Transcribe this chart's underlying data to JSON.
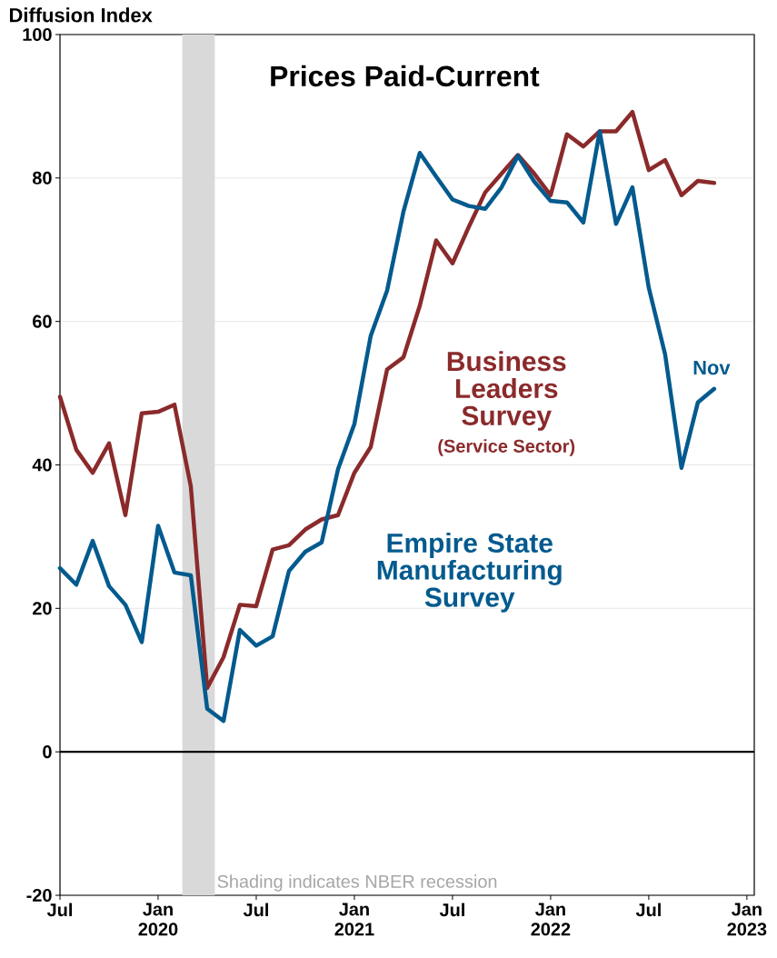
{
  "chart_data": {
    "type": "line",
    "title": "Prices Paid-Current",
    "ylabel": "Diffusion Index",
    "x": [
      "2019-07",
      "2019-08",
      "2019-09",
      "2019-10",
      "2019-11",
      "2019-12",
      "2020-01",
      "2020-02",
      "2020-03",
      "2020-04",
      "2020-05",
      "2020-06",
      "2020-07",
      "2020-08",
      "2020-09",
      "2020-10",
      "2020-11",
      "2020-12",
      "2021-01",
      "2021-02",
      "2021-03",
      "2021-04",
      "2021-05",
      "2021-06",
      "2021-07",
      "2021-08",
      "2021-09",
      "2021-10",
      "2021-11",
      "2021-12",
      "2022-01",
      "2022-02",
      "2022-03",
      "2022-04",
      "2022-05",
      "2022-06",
      "2022-07",
      "2022-08",
      "2022-09",
      "2022-10",
      "2022-11"
    ],
    "series": [
      {
        "name": "Business Leaders Survey",
        "color": "#8b2a2b",
        "values": [
          49.5,
          42.1,
          38.9,
          43.0,
          33.0,
          47.2,
          47.4,
          48.4,
          37.0,
          8.9,
          13.2,
          20.5,
          20.3,
          28.2,
          28.8,
          31.0,
          32.4,
          33.0,
          38.9,
          42.5,
          53.3,
          55.0,
          62.2,
          71.3,
          68.1,
          73.2,
          78.0,
          80.6,
          83.2,
          80.6,
          77.6,
          86.1,
          84.4,
          86.5,
          86.5,
          89.2,
          81.1,
          82.5,
          77.6,
          79.6,
          79.3
        ]
      },
      {
        "name": "Empire State Manufacturing Survey",
        "color": "#035a8e",
        "values": [
          25.6,
          23.3,
          29.4,
          23.1,
          20.5,
          15.3,
          31.5,
          25.0,
          24.6,
          6.0,
          4.3,
          17.0,
          14.8,
          16.1,
          25.2,
          27.9,
          29.2,
          39.4,
          45.7,
          58.0,
          64.3,
          75.3,
          83.5,
          80.2,
          77.0,
          76.1,
          75.7,
          78.7,
          83.1,
          79.5,
          76.8,
          76.6,
          73.8,
          86.5,
          73.6,
          78.7,
          64.7,
          55.4,
          39.6,
          48.7,
          50.6
        ]
      }
    ],
    "annotations": [
      "(Service Sector)",
      {
        "text": "Nov",
        "x": "2022-11",
        "y": 50.6
      }
    ],
    "xlim": [
      "2019-07",
      "2023-01-15"
    ],
    "xticks": [
      {
        "value": "2019-07",
        "label": "Jul"
      },
      {
        "value": "2020-01",
        "label": "Jan 2020"
      },
      {
        "value": "2020-07",
        "label": "Jul"
      },
      {
        "value": "2021-01",
        "label": "Jan 2021"
      },
      {
        "value": "2021-07",
        "label": "Jul"
      },
      {
        "value": "2022-01",
        "label": "Jan 2022"
      },
      {
        "value": "2022-07",
        "label": "Jul"
      },
      {
        "value": "2023-01",
        "label": "Jan 2023"
      }
    ],
    "ylim": [
      -20,
      100
    ],
    "yticks": [
      -20,
      0,
      20,
      40,
      60,
      80,
      100
    ],
    "grid": "y",
    "ref_lines": [
      {
        "axis": "y",
        "value": 0,
        "color": "#000000"
      }
    ],
    "bands": [
      {
        "axis": "x",
        "from": "2020-02-15",
        "to": "2020-04-15",
        "label": "Shading indicates NBER recession",
        "color": "#d9d9d9"
      }
    ]
  }
}
